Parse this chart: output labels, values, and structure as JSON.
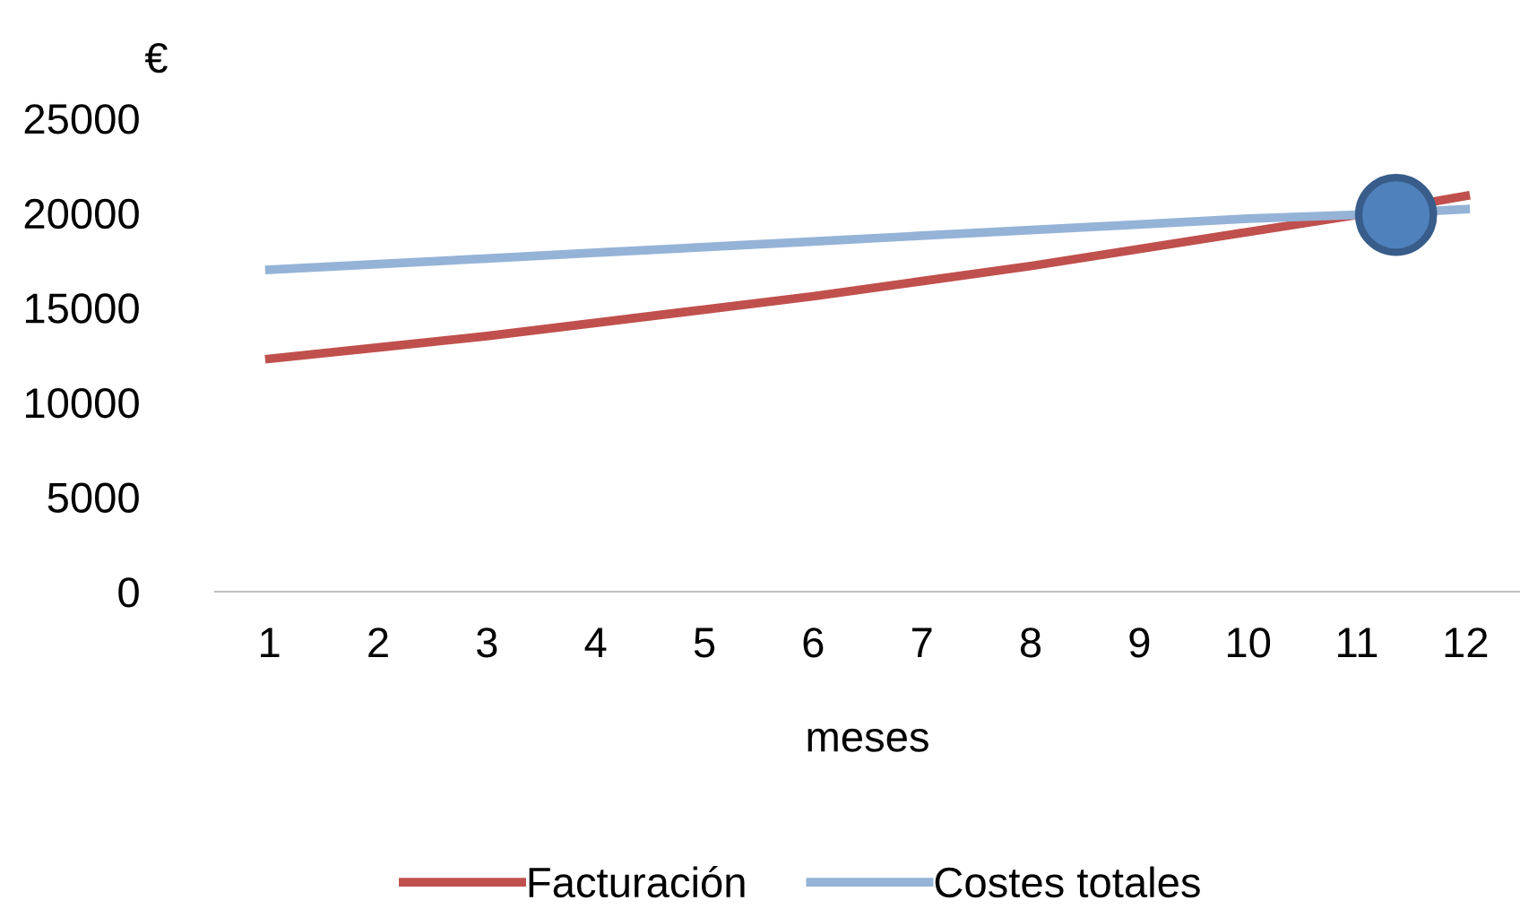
{
  "chart_data": {
    "type": "line",
    "ylabel": "€",
    "xlabel": "meses",
    "x": [
      1,
      2,
      3,
      4,
      5,
      6,
      7,
      8,
      9,
      10,
      11,
      12
    ],
    "xlim": [
      0.5,
      12.5
    ],
    "xticks": [
      1,
      2,
      3,
      4,
      5,
      6,
      7,
      8,
      9,
      10,
      11,
      12
    ],
    "ylim": [
      0,
      25000
    ],
    "yticks": [
      0,
      5000,
      10000,
      15000,
      20000,
      25000
    ],
    "grid": false,
    "legend": "bottom",
    "marker": "none",
    "line_style": "solid",
    "series": [
      {
        "name": "Facturación",
        "color": "#c0504d",
        "values": [
          12300,
          12900,
          13500,
          14200,
          14900,
          15600,
          16400,
          17200,
          18100,
          19000,
          19900,
          20900
        ]
      },
      {
        "name": "Costes totales",
        "color": "#95b3d7",
        "values": [
          17000,
          17300,
          17600,
          17900,
          18200,
          18500,
          18800,
          19100,
          19400,
          19700,
          19900,
          20200
        ]
      },
      {
        "type": "scatter",
        "color": "#4f81bd",
        "marker": "circle",
        "x": [
          11.36
        ],
        "values": [
          19900
        ]
      }
    ]
  }
}
